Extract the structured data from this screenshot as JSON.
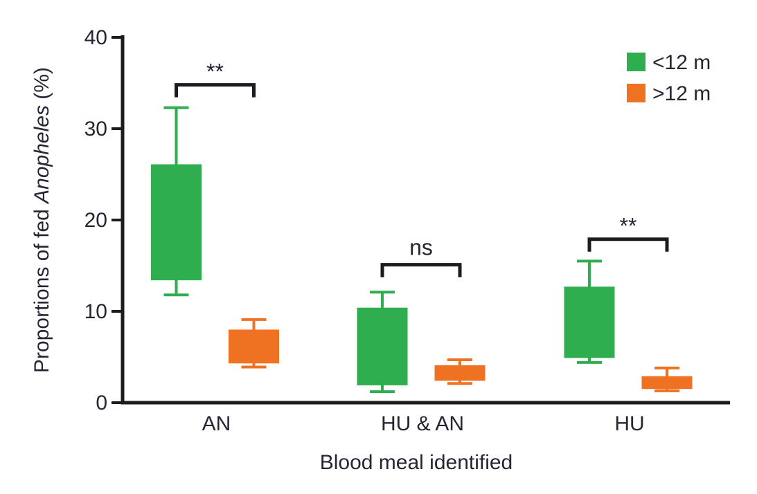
{
  "figure": {
    "title": "",
    "xlabel": "Blood meal identified",
    "ylabel_prefix": "Proportions of fed ",
    "ylabel_italic": "Anopheles",
    "ylabel_suffix": " (%)"
  },
  "legend": {
    "position": "top-right",
    "items": [
      {
        "label": "<12 m",
        "color": "#2EAE4E"
      },
      {
        "label": ">12 m",
        "color": "#EF7223"
      }
    ]
  },
  "colors": {
    "axis": "#1d1b20",
    "bracket": "#1d1b20",
    "text": "#272433",
    "green": "#2EAE4E",
    "orange": "#EF7223"
  },
  "chart_data": {
    "type": "boxplot",
    "title": "",
    "xlabel": "Blood meal identified",
    "ylabel": "Proportions of fed Anopheles (%)",
    "ylim": [
      0,
      40
    ],
    "yticks": [
      0,
      10,
      20,
      30,
      40
    ],
    "grid": false,
    "legend_position": "top-right",
    "categories": [
      "AN",
      "HU & AN",
      "HU"
    ],
    "series": [
      {
        "name": "<12 m",
        "color": "#2EAE4E",
        "boxes": [
          {
            "category": "AN",
            "whisker_low": 11.8,
            "box_low": 13.4,
            "box_high": 26.1,
            "whisker_high": 32.3
          },
          {
            "category": "HU & AN",
            "whisker_low": 1.2,
            "box_low": 1.9,
            "box_high": 10.4,
            "whisker_high": 12.1
          },
          {
            "category": "HU",
            "whisker_low": 4.4,
            "box_low": 4.9,
            "box_high": 12.7,
            "whisker_high": 15.5
          }
        ]
      },
      {
        "name": ">12 m",
        "color": "#EF7223",
        "boxes": [
          {
            "category": "AN",
            "whisker_low": 3.9,
            "box_low": 4.3,
            "box_high": 8.0,
            "whisker_high": 9.1
          },
          {
            "category": "HU & AN",
            "whisker_low": 2.1,
            "box_low": 2.4,
            "box_high": 4.1,
            "whisker_high": 4.7
          },
          {
            "category": "HU",
            "whisker_low": 1.3,
            "box_low": 1.5,
            "box_high": 2.9,
            "whisker_high": 3.8
          }
        ]
      }
    ],
    "significance": [
      {
        "category": "AN",
        "label": "**",
        "bracket_y": 34.8
      },
      {
        "category": "HU & AN",
        "label": "ns",
        "bracket_y": 15.1
      },
      {
        "category": "HU",
        "label": "**",
        "bracket_y": 17.9
      }
    ]
  }
}
